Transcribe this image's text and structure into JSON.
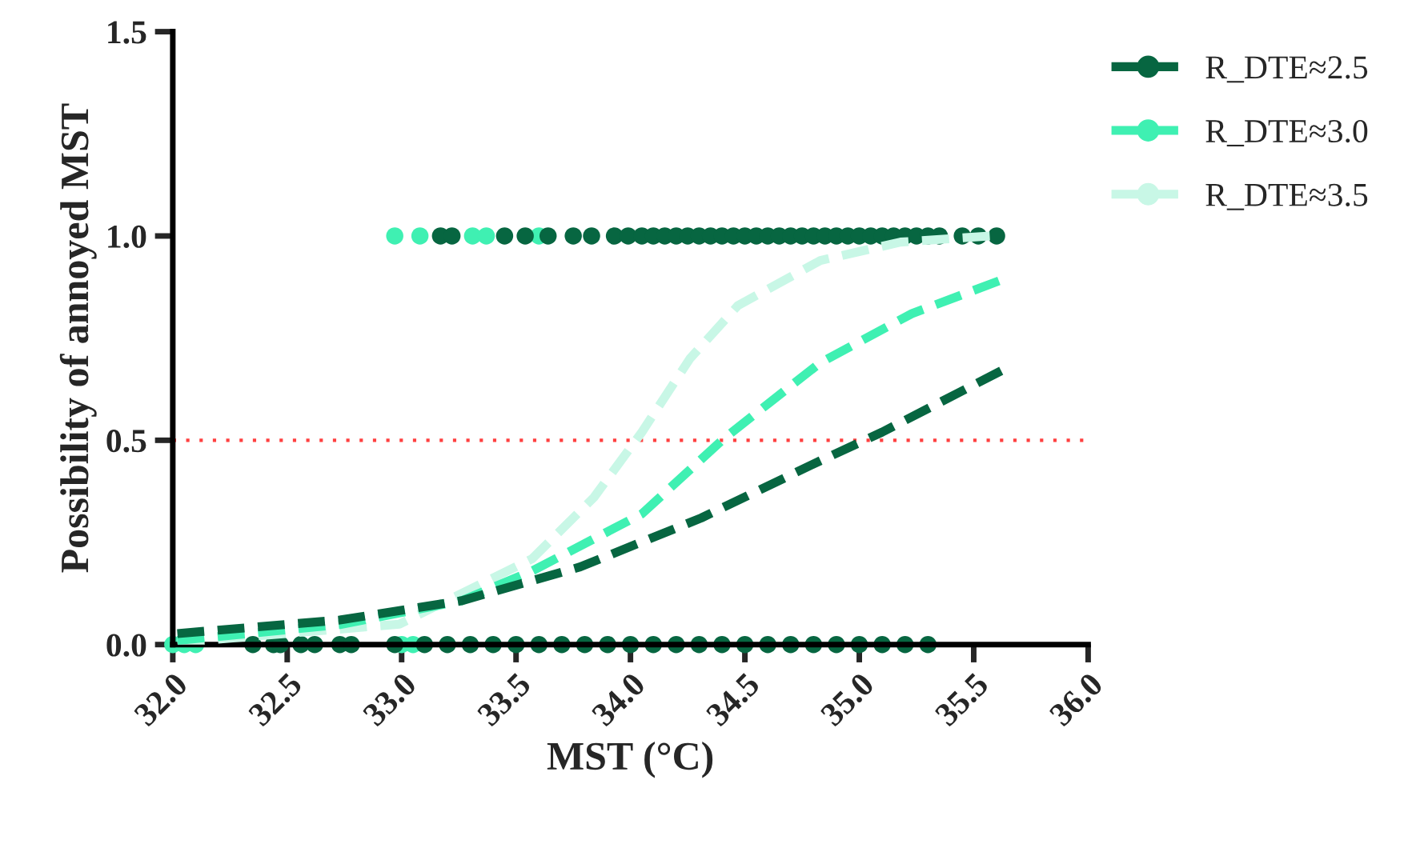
{
  "chart_data": {
    "type": "line",
    "xlabel": "MST (°C)",
    "ylabel": "Possibility of annoyed MST",
    "xlim": [
      32,
      36
    ],
    "ylim": [
      0,
      1.5
    ],
    "xticks": [
      {
        "value": 32,
        "label": "32.0"
      },
      {
        "value": 32.5,
        "label": "32.5"
      },
      {
        "value": 33,
        "label": "33.0"
      },
      {
        "value": 33.5,
        "label": "33.5"
      },
      {
        "value": 34,
        "label": "34.0"
      },
      {
        "value": 34.5,
        "label": "34.5"
      },
      {
        "value": 35,
        "label": "35.0"
      },
      {
        "value": 35.5,
        "label": "35.5"
      },
      {
        "value": 36,
        "label": "36.0"
      }
    ],
    "yticks": [
      {
        "value": 0,
        "label": "0.0"
      },
      {
        "value": 0.5,
        "label": "0.5"
      },
      {
        "value": 1,
        "label": "1.0"
      },
      {
        "value": 1.5,
        "label": "1.5"
      }
    ],
    "grid": false,
    "legend": "top right",
    "ref_lines": [
      {
        "axis": "y",
        "value": 0.5,
        "color": "#ff4040",
        "line_style": "dotted"
      }
    ],
    "series": [
      {
        "type": "scatter",
        "marker": "circle",
        "color": "#3ff0b2",
        "x": [
          32.0,
          32.05,
          32.1,
          33.0,
          33.05,
          32.97,
          33.08,
          33.31,
          33.37,
          33.6
        ],
        "values": [
          0,
          0,
          0,
          0,
          0,
          1,
          1,
          1,
          1,
          1
        ]
      },
      {
        "type": "scatter",
        "marker": "circle",
        "color": "#076641",
        "x": [
          32.35,
          32.44,
          32.47,
          32.56,
          32.62,
          32.73,
          32.78,
          32.97,
          33.1,
          33.2,
          33.3,
          33.4,
          33.5,
          33.6,
          33.7,
          33.8,
          33.9,
          34.0,
          34.1,
          34.2,
          34.3,
          34.4,
          34.5,
          34.6,
          34.7,
          34.8,
          34.9,
          35.0,
          35.1,
          35.2,
          35.3,
          33.17,
          33.22,
          33.45,
          33.54,
          33.64,
          33.75,
          33.83,
          33.93,
          33.99,
          34.05,
          34.1,
          34.15,
          34.2,
          34.25,
          34.3,
          34.35,
          34.4,
          34.45,
          34.5,
          34.55,
          34.6,
          34.65,
          34.7,
          34.75,
          34.8,
          34.85,
          34.9,
          34.95,
          35.0,
          35.05,
          35.1,
          35.15,
          35.2,
          35.25,
          35.3,
          35.35,
          35.45,
          35.52,
          35.6
        ],
        "values": [
          0,
          0,
          0,
          0,
          0,
          0,
          0,
          0,
          0,
          0,
          0,
          0,
          0,
          0,
          0,
          0,
          0,
          0,
          0,
          0,
          0,
          0,
          0,
          0,
          0,
          0,
          0,
          0,
          0,
          0,
          0,
          1,
          1,
          1,
          1,
          1,
          1,
          1,
          1,
          1,
          1,
          1,
          1,
          1,
          1,
          1,
          1,
          1,
          1,
          1,
          1,
          1,
          1,
          1,
          1,
          1,
          1,
          1,
          1,
          1,
          1,
          1,
          1,
          1,
          1,
          1,
          1,
          1,
          1,
          1
        ]
      },
      {
        "name": "R_DTE≈3.5",
        "marker": "none",
        "color": "#c8f7e6",
        "line_style": "dashed",
        "x": [
          32.02,
          32.99,
          33.57,
          33.84,
          34.05,
          34.26,
          34.47,
          34.83,
          35.18,
          35.57
        ],
        "values": [
          0.005,
          0.05,
          0.21,
          0.36,
          0.52,
          0.7,
          0.83,
          0.94,
          0.985,
          1.0
        ]
      },
      {
        "name": "R_DTE≈3.0",
        "marker": "none",
        "color": "#3ff0b2",
        "line_style": "dashed",
        "x": [
          32.02,
          32.73,
          33.26,
          33.57,
          34.05,
          34.41,
          34.83,
          35.23,
          35.61
        ],
        "values": [
          0.01,
          0.049,
          0.107,
          0.18,
          0.32,
          0.505,
          0.69,
          0.81,
          0.89
        ]
      },
      {
        "name": "R_DTE≈2.5",
        "marker": "none",
        "color": "#076641",
        "line_style": "dashed",
        "x": [
          32.02,
          32.73,
          33.26,
          33.78,
          34.31,
          34.83,
          35.1,
          35.62
        ],
        "values": [
          0.027,
          0.06,
          0.107,
          0.19,
          0.31,
          0.45,
          0.52,
          0.67
        ]
      }
    ]
  }
}
